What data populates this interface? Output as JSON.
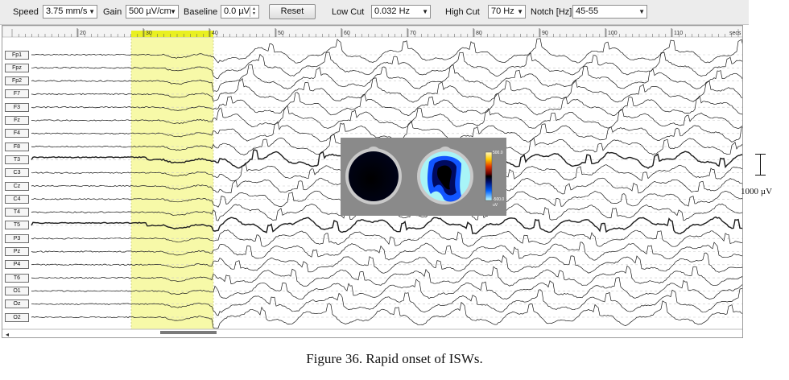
{
  "toolbar": {
    "speed_label": "Speed",
    "speed_value": "3.75 mm/s",
    "gain_label": "Gain",
    "gain_value": "500 µV/cm",
    "baseline_label": "Baseline",
    "baseline_value": "0.0 µV",
    "reset_label": "Reset",
    "lowcut_label": "Low Cut",
    "lowcut_value": "0.032 Hz",
    "highcut_label": "High Cut",
    "highcut_value": "70 Hz",
    "notch_label": "Notch [Hz]",
    "notch_value": "45-55"
  },
  "ruler": {
    "ticks": [
      "20",
      "30",
      "40",
      "50",
      "60",
      "70",
      "80",
      "90",
      "100",
      "110"
    ],
    "unit": "secs"
  },
  "channels": [
    "Fp1",
    "Fpz",
    "Fp2",
    "F7",
    "F3",
    "Fz",
    "F4",
    "F8",
    "T3",
    "C3",
    "Cz",
    "C4",
    "T4",
    "T5",
    "P3",
    "Pz",
    "P4",
    "T6",
    "O1",
    "Oz",
    "O2"
  ],
  "highlight_color": "#f7f9a8",
  "topomap": {
    "scale_max": "500.0",
    "scale_min": "-500.0",
    "scale_unit": "uV"
  },
  "calibration": "1000 µV",
  "caption": "Figure 36. Rapid onset of ISWs."
}
